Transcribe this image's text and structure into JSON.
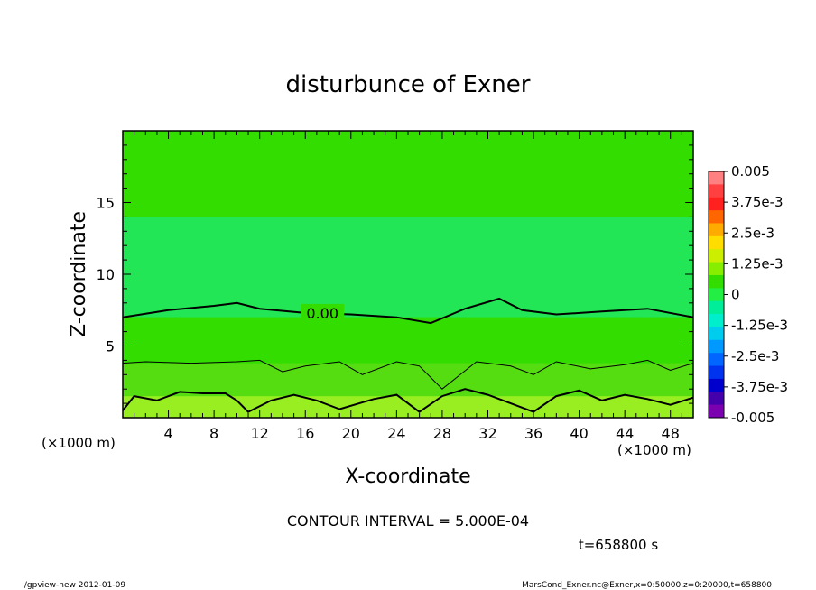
{
  "title": "disturbunce of Exner",
  "footer": {
    "contour_interval": "CONTOUR INTERVAL = 5.000E-04",
    "time": "t=658800 s",
    "left_note": "./gpview-new   2012-01-09",
    "right_note": "MarsCond_Exner.nc@Exner,x=0:50000,z=0:20000,t=658800"
  },
  "chart_data": {
    "type": "heatmap",
    "title": "disturbunce of Exner",
    "xlabel": "X-coordinate",
    "ylabel": "Z-coordinate",
    "x_unit": "(×1000 m)",
    "y_unit": "(×1000 m)",
    "xlim": [
      0,
      50
    ],
    "ylim": [
      0,
      20
    ],
    "x_ticks": [
      4,
      8,
      12,
      16,
      20,
      24,
      28,
      32,
      36,
      40,
      44,
      48
    ],
    "y_ticks": [
      5,
      10,
      15
    ],
    "contour_label": "0.00",
    "zero_contour": [
      [
        0,
        7.0
      ],
      [
        4,
        7.5
      ],
      [
        8,
        7.8
      ],
      [
        10,
        8.0
      ],
      [
        12,
        7.6
      ],
      [
        16,
        7.3
      ],
      [
        20,
        7.2
      ],
      [
        24,
        7.0
      ],
      [
        27,
        6.6
      ],
      [
        30,
        7.6
      ],
      [
        33,
        8.3
      ],
      [
        35,
        7.5
      ],
      [
        38,
        7.2
      ],
      [
        42,
        7.4
      ],
      [
        46,
        7.6
      ],
      [
        50,
        7.0
      ]
    ],
    "low_contour": [
      [
        0,
        3.8
      ],
      [
        2,
        3.9
      ],
      [
        6,
        3.8
      ],
      [
        10,
        3.9
      ],
      [
        12,
        4.0
      ],
      [
        14,
        3.2
      ],
      [
        16,
        3.6
      ],
      [
        19,
        3.9
      ],
      [
        21,
        3.0
      ],
      [
        24,
        3.9
      ],
      [
        26,
        3.6
      ],
      [
        28,
        2.0
      ],
      [
        31,
        3.9
      ],
      [
        34,
        3.6
      ],
      [
        36,
        3.0
      ],
      [
        38,
        3.9
      ],
      [
        41,
        3.4
      ],
      [
        44,
        3.7
      ],
      [
        46,
        4.0
      ],
      [
        48,
        3.3
      ],
      [
        50,
        3.8
      ]
    ],
    "near_ground_contour": [
      [
        0,
        0.5
      ],
      [
        1,
        1.5
      ],
      [
        3,
        1.2
      ],
      [
        5,
        1.8
      ],
      [
        7,
        1.7
      ],
      [
        9,
        1.7
      ],
      [
        10,
        1.2
      ],
      [
        11,
        0.4
      ],
      [
        13,
        1.2
      ],
      [
        15,
        1.6
      ],
      [
        17,
        1.2
      ],
      [
        19,
        0.6
      ],
      [
        22,
        1.3
      ],
      [
        24,
        1.6
      ],
      [
        26,
        0.4
      ],
      [
        28,
        1.5
      ],
      [
        30,
        2.0
      ],
      [
        32,
        1.6
      ],
      [
        34,
        1.0
      ],
      [
        36,
        0.4
      ],
      [
        38,
        1.5
      ],
      [
        40,
        1.9
      ],
      [
        42,
        1.2
      ],
      [
        44,
        1.6
      ],
      [
        46,
        1.3
      ],
      [
        48,
        0.9
      ],
      [
        50,
        1.4
      ]
    ],
    "bands": [
      {
        "z_range": [
          14.0,
          20
        ],
        "value_index": 4
      },
      {
        "z_range": [
          7.0,
          14.0
        ],
        "value_index": 5
      },
      {
        "z_range": [
          3.8,
          7.0
        ],
        "value_index": 4
      },
      {
        "z_range": [
          1.5,
          3.8
        ],
        "value_index": 6
      },
      {
        "z_range": [
          0,
          1.5
        ],
        "value_index": 7
      }
    ],
    "colorbar": {
      "labels": [
        "0.005",
        "3.75e-3",
        "2.5e-3",
        "1.25e-3",
        "0",
        "-1.25e-3",
        "-2.5e-3",
        "-3.75e-3",
        "-0.005"
      ],
      "colors": [
        "#ff8080",
        "#ff4040",
        "#ff2020",
        "#ff6600",
        "#ffaa00",
        "#ffdd00",
        "#ccee00",
        "#88ee00",
        "#33dd00",
        "#22ee44",
        "#00ee99",
        "#00eecc",
        "#00ccee",
        "#0099ff",
        "#0066ff",
        "#0033ee",
        "#0000cc",
        "#4400aa",
        "#7a00b0"
      ]
    },
    "field_colors": [
      "#7a00b0",
      "#0000cc",
      "#0066ff",
      "#00ee99",
      "#33dd00",
      "#22e655",
      "#55dd11",
      "#99ee22"
    ]
  }
}
